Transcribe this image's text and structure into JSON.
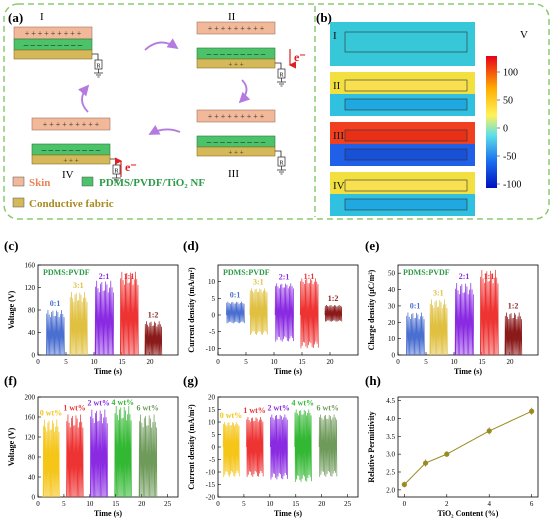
{
  "panel_a": {
    "label": "(a)",
    "stages": [
      "I",
      "II",
      "III",
      "IV"
    ],
    "electron": "e⁻",
    "legend": [
      {
        "label": "Skin",
        "color": "#f2b89a"
      },
      {
        "label": "PDMS/PVDF/TiO₂ NF",
        "color": "#4cc26a"
      },
      {
        "label": "Conductive fabric",
        "color": "#d4b85a"
      }
    ]
  },
  "panel_b": {
    "label": "(b)",
    "stages": [
      "I",
      "II",
      "III",
      "IV"
    ],
    "colorbar_unit": "V",
    "colorbar_ticks": [
      "100",
      "50",
      "0",
      "-50",
      "-100"
    ]
  },
  "panels": {
    "c": {
      "label": "(c)",
      "title": "PDMS:PVDF"
    },
    "d": {
      "label": "(d)",
      "title": "PDMS:PVDF"
    },
    "e": {
      "label": "(e)",
      "title": "PDMS:PVDF"
    },
    "f": {
      "label": "(f)"
    },
    "g": {
      "label": "(g)"
    },
    "h": {
      "label": "(h)"
    }
  },
  "chart_data": [
    {
      "id": "c",
      "type": "line",
      "xlabel": "Time (s)",
      "ylabel": "Voltage (V)",
      "xlim": [
        0,
        25
      ],
      "ylim": [
        0,
        160
      ],
      "xticks": [
        "0",
        "5",
        "10",
        "15",
        "20"
      ],
      "yticks": [
        "0",
        "40",
        "80",
        "120",
        "160"
      ],
      "series": [
        {
          "name": "0:1",
          "color": "#4a6fd0",
          "x_range": [
            1.5,
            4.6
          ],
          "peak": 80
        },
        {
          "name": "3:1",
          "color": "#e0c040",
          "x_range": [
            5.7,
            8.7
          ],
          "peak": 112
        },
        {
          "name": "2:1",
          "color": "#8a2be2",
          "x_range": [
            10.2,
            13.4
          ],
          "peak": 132
        },
        {
          "name": "1:1",
          "color": "#ee3333",
          "x_range": [
            14.7,
            17.8
          ],
          "peak": 148
        },
        {
          "name": "1:2",
          "color": "#8b1a1a",
          "x_range": [
            19.1,
            22.0
          ],
          "peak": 60
        }
      ]
    },
    {
      "id": "d",
      "type": "line",
      "xlabel": "Time (s)",
      "ylabel": "Current density (mA/m²)",
      "xlim": [
        0,
        25
      ],
      "ylim": [
        -12,
        15
      ],
      "xticks": [
        "0",
        "5",
        "10",
        "15",
        "20"
      ],
      "yticks": [
        "-10",
        "-5",
        "0",
        "5",
        "10"
      ],
      "series": [
        {
          "name": "0:1",
          "color": "#4a6fd0",
          "x_range": [
            1.5,
            4.6
          ],
          "peak": 4,
          "trough": -2.5
        },
        {
          "name": "3:1",
          "color": "#e0c040",
          "x_range": [
            5.7,
            8.7
          ],
          "peak": 8,
          "trough": -6
        },
        {
          "name": "2:1",
          "color": "#8a2be2",
          "x_range": [
            10.2,
            13.4
          ],
          "peak": 9.5,
          "trough": -8
        },
        {
          "name": "1:1",
          "color": "#ee3333",
          "x_range": [
            14.7,
            17.8
          ],
          "peak": 11,
          "trough": -10
        },
        {
          "name": "1:2",
          "color": "#8b1a1a",
          "x_range": [
            19.1,
            22.0
          ],
          "peak": 3,
          "trough": -2
        }
      ]
    },
    {
      "id": "e",
      "type": "line",
      "xlabel": "Time (s)",
      "ylabel": "Charge density (μC/m²)",
      "xlim": [
        0,
        25
      ],
      "ylim": [
        0,
        55
      ],
      "xticks": [
        "0",
        "5",
        "10",
        "15",
        "20"
      ],
      "yticks": [
        "0",
        "10",
        "20",
        "30",
        "40",
        "50"
      ],
      "series": [
        {
          "name": "0:1",
          "color": "#4a6fd0",
          "x_range": [
            1.5,
            4.6
          ],
          "peak": 26
        },
        {
          "name": "3:1",
          "color": "#e0c040",
          "x_range": [
            5.7,
            8.7
          ],
          "peak": 34
        },
        {
          "name": "2:1",
          "color": "#8a2be2",
          "x_range": [
            10.2,
            13.4
          ],
          "peak": 44
        },
        {
          "name": "1:1",
          "color": "#ee3333",
          "x_range": [
            14.7,
            17.8
          ],
          "peak": 52
        },
        {
          "name": "1:2",
          "color": "#8b1a1a",
          "x_range": [
            19.1,
            22.0
          ],
          "peak": 26
        }
      ]
    },
    {
      "id": "f",
      "type": "line",
      "xlabel": "Time (s)",
      "ylabel": "Voltage (V)",
      "xlim": [
        0,
        27
      ],
      "ylim": [
        0,
        200
      ],
      "xticks": [
        "0",
        "5",
        "10",
        "15",
        "20",
        "25"
      ],
      "yticks": [
        "0",
        "40",
        "80",
        "120",
        "160",
        "200"
      ],
      "series": [
        {
          "name": "0 wt%",
          "color": "#f5c518",
          "x_range": [
            1.0,
            4.0
          ],
          "peak": 155
        },
        {
          "name": "1 wt%",
          "color": "#ee3333",
          "x_range": [
            5.5,
            8.6
          ],
          "peak": 165
        },
        {
          "name": "2 wt%",
          "color": "#8a2be2",
          "x_range": [
            10.1,
            13.3
          ],
          "peak": 175
        },
        {
          "name": "4 wt%",
          "color": "#33b833",
          "x_range": [
            14.8,
            17.9
          ],
          "peak": 182
        },
        {
          "name": "6 wt%",
          "color": "#6e9a5a",
          "x_range": [
            19.5,
            22.8
          ],
          "peak": 165
        }
      ]
    },
    {
      "id": "g",
      "type": "line",
      "xlabel": "Time (s)",
      "ylabel": "Current density (mA/m²)",
      "xlim": [
        0,
        27
      ],
      "ylim": [
        -20,
        20
      ],
      "xticks": [
        "0",
        "5",
        "10",
        "15",
        "20",
        "25"
      ],
      "yticks": [
        "-20",
        "-15",
        "-10",
        "-5",
        "0",
        "5",
        "10",
        "15",
        "20"
      ],
      "series": [
        {
          "name": "0 wt%",
          "color": "#f5c518",
          "x_range": [
            1.0,
            4.0
          ],
          "peak": 10,
          "trough": -12
        },
        {
          "name": "1 wt%",
          "color": "#ee3333",
          "x_range": [
            5.5,
            8.6
          ],
          "peak": 12,
          "trough": -12
        },
        {
          "name": "2 wt%",
          "color": "#8a2be2",
          "x_range": [
            10.1,
            13.3
          ],
          "peak": 13,
          "trough": -13
        },
        {
          "name": "4 wt%",
          "color": "#33b833",
          "x_range": [
            14.8,
            17.9
          ],
          "peak": 15,
          "trough": -14
        },
        {
          "name": "6 wt%",
          "color": "#6e9a5a",
          "x_range": [
            19.5,
            22.8
          ],
          "peak": 13,
          "trough": -12
        }
      ]
    },
    {
      "id": "h",
      "type": "line",
      "xlabel": "TiO₂ Content (%)",
      "ylabel": "Relative Permittivity",
      "xlim": [
        -0.3,
        6.3
      ],
      "ylim": [
        1.8,
        4.6
      ],
      "xticks": [
        "0",
        "2",
        "4",
        "6"
      ],
      "yticks": [
        "2.0",
        "2.5",
        "3.0",
        "3.5",
        "4.0",
        "4.5"
      ],
      "series": [
        {
          "name": "",
          "color": "#9a8a20",
          "x": [
            0,
            1,
            2,
            4,
            6
          ],
          "y": [
            2.15,
            2.75,
            3.0,
            3.65,
            4.2
          ],
          "err": [
            0.08,
            0.1,
            0.08,
            0.1,
            0.1
          ]
        }
      ]
    }
  ]
}
